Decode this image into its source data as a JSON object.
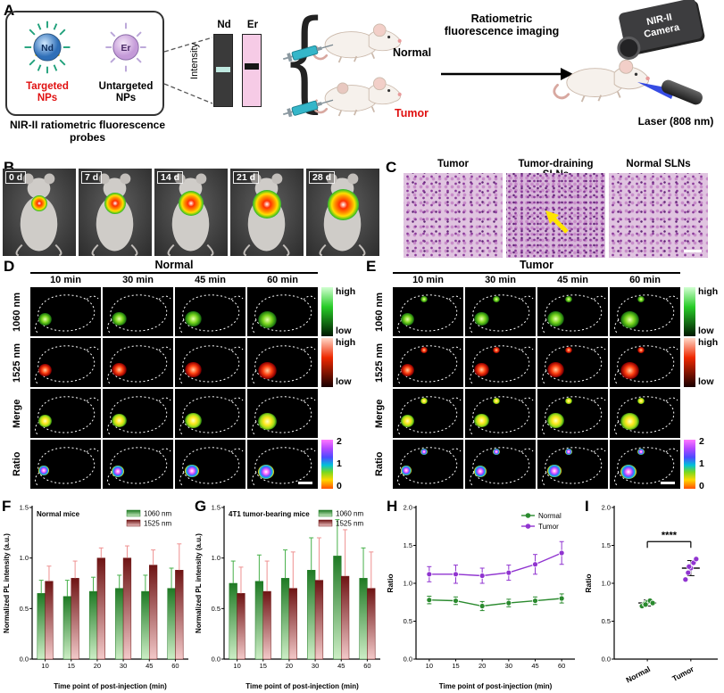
{
  "panels": {
    "A": {
      "label": "A",
      "nd": "Nd",
      "er": "Er",
      "targeted": "Targeted NPs",
      "untargeted": "Untargeted NPs",
      "box_caption": "NIR-II ratiometric fluorescence probes",
      "intensity": "Intensity",
      "bar_nd": "Nd",
      "bar_er": "Er",
      "normal": "Normal",
      "tumor": "Tumor",
      "flow": "Ratiometric fluorescence imaging",
      "camera": "NIR-II Camera",
      "laser": "Laser (808 nm)"
    },
    "B": {
      "label": "B",
      "timepoints": [
        "0 d",
        "7 d",
        "14 d",
        "21 d",
        "28 d"
      ]
    },
    "C": {
      "label": "C",
      "titles": [
        "Tumor",
        "Tumor-draining SLNs",
        "Normal SLNs"
      ]
    },
    "D": {
      "label": "D",
      "title": "Normal",
      "columns": [
        "10 min",
        "30 min",
        "45 min",
        "60 min"
      ],
      "rows": [
        "1060 nm",
        "1525 nm",
        "Merge",
        "Ratio"
      ],
      "cb_high": "high",
      "cb_low": "low",
      "ratio_ticks": [
        "2",
        "1",
        "0"
      ]
    },
    "E": {
      "label": "E",
      "title": "Tumor",
      "columns": [
        "10 min",
        "30 min",
        "45 min",
        "60 min"
      ],
      "rows": [
        "1060 nm",
        "1525 nm",
        "Merge",
        "Ratio"
      ],
      "cb_high": "high",
      "cb_low": "low",
      "ratio_ticks": [
        "2",
        "1",
        "0"
      ]
    }
  },
  "chart_data": [
    {
      "id": "F",
      "type": "bar",
      "title": "Normal mice",
      "xlabel": "Time point of post-injection (min)",
      "ylabel": "Normalized PL intensity (a.u.)",
      "ylim": [
        0,
        1.5
      ],
      "yticks": [
        "0.0",
        "0.5",
        "1.0",
        "1.5"
      ],
      "categories": [
        "10",
        "15",
        "20",
        "30",
        "45",
        "60"
      ],
      "series": [
        {
          "name": "1060 nm",
          "color_top": "#1f7a24",
          "color_bottom": "#cdeec6",
          "err_color": "#46b04a",
          "values": [
            0.65,
            0.62,
            0.67,
            0.7,
            0.67,
            0.7
          ],
          "errors": [
            0.13,
            0.16,
            0.14,
            0.13,
            0.16,
            0.2
          ]
        },
        {
          "name": "1525 nm",
          "color_top": "#6e1414",
          "color_bottom": "#f3c9c9",
          "err_color": "#ee9090",
          "values": [
            0.77,
            0.8,
            1.0,
            1.0,
            0.93,
            0.88
          ],
          "errors": [
            0.15,
            0.17,
            0.1,
            0.12,
            0.15,
            0.26
          ]
        }
      ]
    },
    {
      "id": "G",
      "type": "bar",
      "title": "4T1 tumor-bearing mice",
      "xlabel": "Time point of post-injection (min)",
      "ylabel": "Normalized PL intensity (a.u.)",
      "ylim": [
        0,
        1.5
      ],
      "yticks": [
        "0.0",
        "0.5",
        "1.0",
        "1.5"
      ],
      "categories": [
        "10",
        "15",
        "20",
        "30",
        "45",
        "60"
      ],
      "series": [
        {
          "name": "1060 nm",
          "color_top": "#1f7a24",
          "color_bottom": "#cdeec6",
          "err_color": "#46b04a",
          "values": [
            0.75,
            0.77,
            0.8,
            0.88,
            1.02,
            0.8
          ],
          "errors": [
            0.22,
            0.26,
            0.28,
            0.32,
            0.36,
            0.3
          ]
        },
        {
          "name": "1525 nm",
          "color_top": "#6e1414",
          "color_bottom": "#f3c9c9",
          "err_color": "#ee9090",
          "values": [
            0.65,
            0.67,
            0.7,
            0.78,
            0.82,
            0.7
          ],
          "errors": [
            0.26,
            0.3,
            0.36,
            0.42,
            0.46,
            0.36
          ]
        }
      ]
    },
    {
      "id": "H",
      "type": "line",
      "xlabel": "Time point of post-injection (min)",
      "ylabel": "Ratio",
      "ylim": [
        0,
        2.0
      ],
      "yticks": [
        "0.0",
        "0.5",
        "1.0",
        "1.5",
        "2.0"
      ],
      "categories": [
        "10",
        "15",
        "20",
        "30",
        "45",
        "60"
      ],
      "series": [
        {
          "name": "Normal",
          "color": "#2a8a2e",
          "values": [
            0.78,
            0.77,
            0.7,
            0.74,
            0.77,
            0.8
          ],
          "errors": [
            0.05,
            0.05,
            0.06,
            0.05,
            0.05,
            0.06
          ]
        },
        {
          "name": "Tumor",
          "color": "#9034d0",
          "values": [
            1.12,
            1.12,
            1.1,
            1.14,
            1.25,
            1.4
          ],
          "errors": [
            0.1,
            0.12,
            0.1,
            0.1,
            0.13,
            0.15
          ]
        }
      ]
    },
    {
      "id": "I",
      "type": "scatter",
      "ylabel": "Ratio",
      "ylim": [
        0,
        2.0
      ],
      "yticks": [
        "0.0",
        "0.5",
        "1.0",
        "1.5",
        "2.0"
      ],
      "significance": "****",
      "groups": [
        {
          "name": "Normal",
          "color": "#2a8a2e",
          "mean": 0.74,
          "err": 0.04,
          "points": [
            0.7,
            0.73,
            0.75,
            0.77,
            0.74,
            0.72
          ]
        },
        {
          "name": "Tumor",
          "color": "#9034d0",
          "mean": 1.2,
          "err": 0.1,
          "points": [
            1.05,
            1.14,
            1.2,
            1.27,
            1.32,
            1.22
          ]
        }
      ]
    }
  ]
}
